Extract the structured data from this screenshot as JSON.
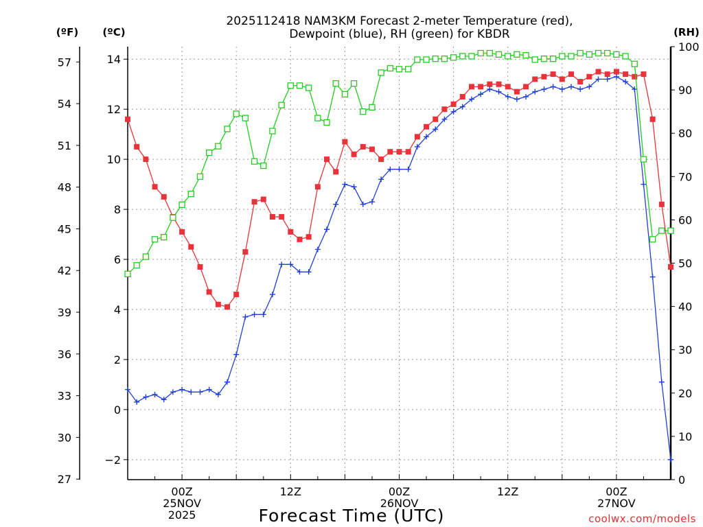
{
  "chart_data": {
    "type": "line",
    "title": [
      "2025112418 NAM3KM Forecast 2-meter Temperature (red),",
      "Dewpoint (blue), RH (green) for KBDR"
    ],
    "xlabel": "Forecast Time (UTC)",
    "watermark": "coolwx.com/models",
    "left_axis_f_label": "(ºF)",
    "left_axis_c_label": "(ºC)",
    "right_axis_label": "(RH)",
    "f_ticks": [
      "57",
      "54",
      "51",
      "48",
      "45",
      "42",
      "39",
      "36",
      "33",
      "30",
      "27"
    ],
    "c_ticks": [
      "14",
      "12",
      "10",
      "8",
      "6",
      "4",
      "2",
      "0",
      "−2"
    ],
    "rh_ticks": [
      "100",
      "90",
      "80",
      "70",
      "60",
      "50",
      "40",
      "30",
      "20",
      "10",
      "0"
    ],
    "x_ticks": [
      {
        "hour": 0,
        "lines": [
          "00Z",
          "25NOV",
          "2025"
        ]
      },
      {
        "hour": 12,
        "lines": [
          "12Z"
        ]
      },
      {
        "hour": 24,
        "lines": [
          "00Z",
          "26NOV"
        ]
      },
      {
        "hour": 36,
        "lines": [
          "12Z"
        ]
      },
      {
        "hour": 48,
        "lines": [
          "00Z",
          "27NOV"
        ]
      }
    ],
    "x_range_hours": [
      -6,
      54
    ],
    "c_range": [
      -2.8,
      14.5
    ],
    "rh_range": [
      0,
      100
    ],
    "colors": {
      "temperature": "#e8333a",
      "dewpoint": "#1f3fd8",
      "rh": "#22cc22",
      "grid": "#9a9a9a"
    },
    "series": [
      {
        "name": "Temperature (°C)",
        "marker": "square",
        "x": [
          -6,
          -5,
          -4,
          -3,
          -2,
          -1,
          0,
          1,
          2,
          3,
          4,
          5,
          6,
          7,
          8,
          9,
          10,
          11,
          12,
          13,
          14,
          15,
          16,
          17,
          18,
          19,
          20,
          21,
          22,
          23,
          24,
          25,
          26,
          27,
          28,
          29,
          30,
          31,
          32,
          33,
          34,
          35,
          36,
          37,
          38,
          39,
          40,
          41,
          42,
          43,
          44,
          45,
          46,
          47,
          48,
          49,
          50,
          51,
          52,
          53,
          54
        ],
        "values": [
          11.6,
          10.5,
          10.0,
          8.9,
          8.5,
          7.7,
          7.1,
          6.5,
          5.7,
          4.7,
          4.2,
          4.1,
          4.6,
          6.3,
          8.3,
          8.4,
          7.7,
          7.7,
          7.1,
          6.8,
          6.9,
          8.9,
          10.0,
          9.5,
          10.7,
          10.2,
          10.5,
          10.4,
          10.0,
          10.3,
          10.3,
          10.3,
          10.9,
          11.3,
          11.6,
          12.0,
          12.2,
          12.5,
          12.9,
          12.9,
          13.0,
          13.0,
          12.9,
          12.7,
          12.9,
          13.2,
          13.3,
          13.4,
          13.2,
          13.4,
          13.1,
          13.3,
          13.5,
          13.4,
          13.5,
          13.4,
          13.3,
          13.4,
          11.6,
          8.2,
          5.7
        ]
      },
      {
        "name": "Dewpoint (°C)",
        "marker": "plus",
        "x": [
          -6,
          -5,
          -4,
          -3,
          -2,
          -1,
          0,
          1,
          2,
          3,
          4,
          5,
          6,
          7,
          8,
          9,
          10,
          11,
          12,
          13,
          14,
          15,
          16,
          17,
          18,
          19,
          20,
          21,
          22,
          23,
          24,
          25,
          26,
          27,
          28,
          29,
          30,
          31,
          32,
          33,
          34,
          35,
          36,
          37,
          38,
          39,
          40,
          41,
          42,
          43,
          44,
          45,
          46,
          47,
          48,
          49,
          50,
          51,
          52,
          53,
          54
        ],
        "values": [
          0.8,
          0.3,
          0.5,
          0.6,
          0.4,
          0.7,
          0.8,
          0.7,
          0.7,
          0.8,
          0.6,
          1.1,
          2.2,
          3.7,
          3.8,
          3.8,
          4.6,
          5.8,
          5.8,
          5.5,
          5.5,
          6.4,
          7.2,
          8.2,
          9.0,
          8.9,
          8.2,
          8.3,
          9.2,
          9.6,
          9.6,
          9.6,
          10.5,
          10.9,
          11.2,
          11.6,
          11.9,
          12.1,
          12.4,
          12.6,
          12.8,
          12.7,
          12.5,
          12.4,
          12.5,
          12.7,
          12.8,
          12.9,
          12.8,
          12.9,
          12.8,
          12.9,
          13.2,
          13.2,
          13.3,
          13.1,
          12.8,
          9.0,
          5.3,
          1.1,
          -2.0
        ]
      },
      {
        "name": "RH (%)",
        "marker": "open-square",
        "x": [
          -6,
          -5,
          -4,
          -3,
          -2,
          -1,
          0,
          1,
          2,
          3,
          4,
          5,
          6,
          7,
          8,
          9,
          10,
          11,
          12,
          13,
          14,
          15,
          16,
          17,
          18,
          19,
          20,
          21,
          22,
          23,
          24,
          25,
          26,
          27,
          28,
          29,
          30,
          31,
          32,
          33,
          34,
          35,
          36,
          37,
          38,
          39,
          40,
          41,
          42,
          43,
          44,
          45,
          46,
          47,
          48,
          49,
          50,
          51,
          52,
          53,
          54
        ],
        "values": [
          47.5,
          49.5,
          51.5,
          55.5,
          56,
          60.5,
          63.5,
          66,
          70,
          75.5,
          77,
          81,
          84.5,
          83.5,
          73.5,
          72.5,
          80.5,
          86.5,
          91,
          91,
          90.5,
          83.5,
          82.5,
          91.5,
          89,
          91.5,
          85,
          86,
          94,
          95,
          94.8,
          94.8,
          97,
          97,
          97.2,
          97.2,
          97.5,
          97.8,
          97.8,
          98.5,
          98.5,
          98.2,
          97.8,
          98.2,
          98,
          97,
          97.2,
          97.2,
          97.8,
          97.8,
          98.5,
          98.2,
          98.5,
          98.5,
          98.2,
          97.8,
          96,
          74,
          55.5,
          57.5,
          57.5
        ]
      }
    ]
  }
}
